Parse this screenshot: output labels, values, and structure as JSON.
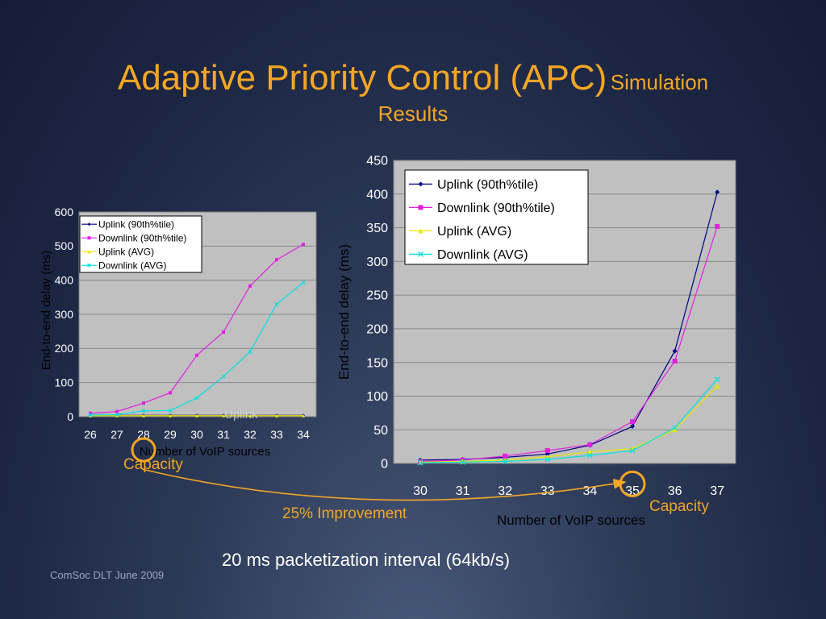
{
  "slide": {
    "title_main": "Adaptive Priority Control (APC)",
    "title_sub_1": "Simulation",
    "title_sub_2": "Results",
    "caption": "20 ms packetization interval (64kb/s)",
    "footer": "ComSoc DLT June 2009",
    "left_capacity_label": "Capacity",
    "right_capacity_label": "Capacity",
    "improvement_label": "25% Improvement",
    "overlay_text": "Uplink",
    "colors": {
      "accent": "#f5a623",
      "plot_bg": "#c0c0c0"
    }
  },
  "chart_data": [
    {
      "type": "line",
      "ylabel": "End-to-end delay (ms)",
      "xlabel": "Number of VoIP sources",
      "categories": [
        "26",
        "27",
        "28",
        "29",
        "30",
        "31",
        "32",
        "33",
        "34"
      ],
      "ylim": [
        0,
        600
      ],
      "yticks": [
        "0",
        "100",
        "200",
        "300",
        "400",
        "500",
        "600"
      ],
      "legend": "top-left",
      "highlight_category": "28",
      "series": [
        {
          "name": "Uplink (90th%tile)",
          "color": "#000080",
          "marker": "diamond",
          "values": [
            4,
            4,
            4,
            4,
            4,
            4,
            4,
            4,
            4
          ]
        },
        {
          "name": "Downlink (90th%tile)",
          "color": "#e020e0",
          "marker": "square",
          "values": [
            10,
            15,
            40,
            70,
            180,
            248,
            383,
            460,
            505
          ]
        },
        {
          "name": "Uplink (AVG)",
          "color": "#e8e800",
          "marker": "triangle",
          "values": [
            3,
            3,
            3,
            3,
            3,
            3,
            3,
            3,
            3
          ]
        },
        {
          "name": "Downlink (AVG)",
          "color": "#00e0e0",
          "marker": "cross",
          "values": [
            5,
            6,
            17,
            18,
            55,
            118,
            190,
            330,
            393
          ]
        }
      ]
    },
    {
      "type": "line",
      "ylabel": "End-to-end delay (ms)",
      "xlabel": "Number of VoIP sources",
      "categories": [
        "30",
        "31",
        "32",
        "33",
        "34",
        "35",
        "36",
        "37"
      ],
      "ylim": [
        0,
        450
      ],
      "yticks": [
        "0",
        "50",
        "100",
        "150",
        "200",
        "250",
        "300",
        "350",
        "400",
        "450"
      ],
      "legend": "top-left",
      "highlight_category": "35",
      "series": [
        {
          "name": "Uplink (90th%tile)",
          "color": "#000080",
          "marker": "diamond",
          "values": [
            5,
            6,
            9,
            14,
            27,
            55,
            167,
            403
          ]
        },
        {
          "name": "Downlink (90th%tile)",
          "color": "#e020e0",
          "marker": "square",
          "values": [
            3,
            5,
            11,
            19,
            28,
            62,
            152,
            352
          ]
        },
        {
          "name": "Uplink (AVG)",
          "color": "#e8e800",
          "marker": "triangle",
          "values": [
            2,
            3,
            5,
            10,
            17,
            22,
            50,
            115
          ]
        },
        {
          "name": "Downlink (AVG)",
          "color": "#00e0e0",
          "marker": "cross",
          "values": [
            1,
            2,
            3,
            6,
            12,
            19,
            53,
            125
          ]
        }
      ]
    }
  ]
}
